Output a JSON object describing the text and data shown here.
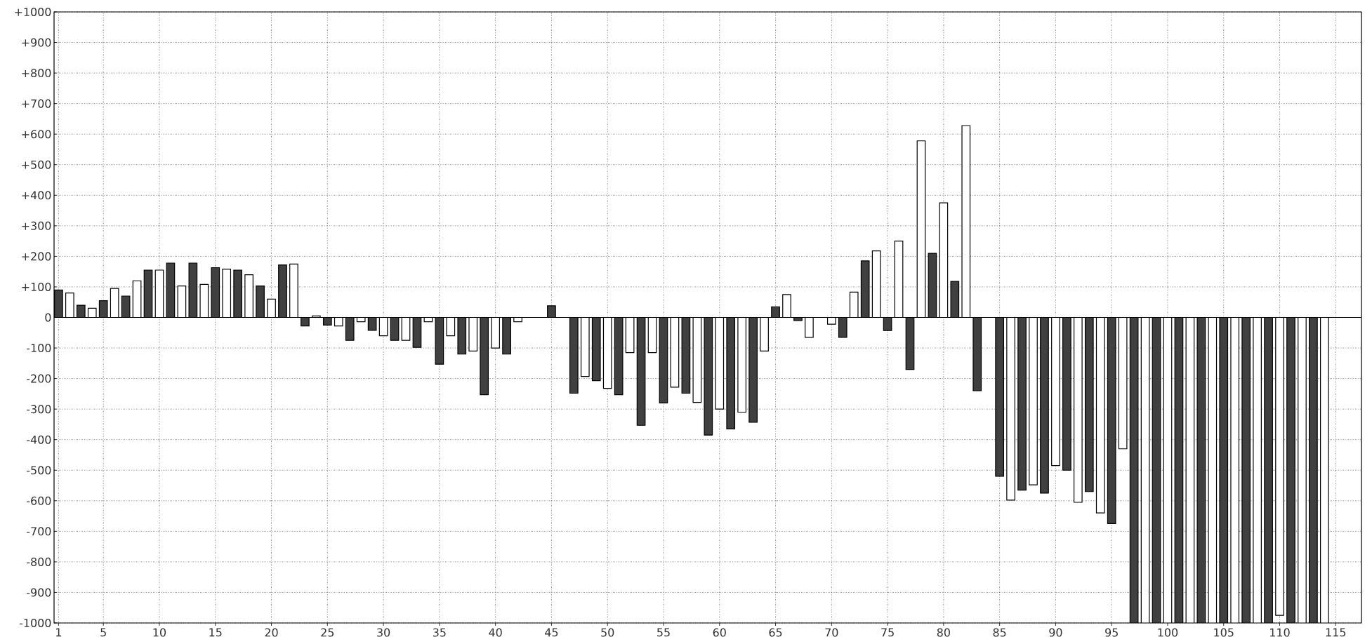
{
  "chart_data": {
    "type": "bar",
    "x": [
      1,
      2,
      3,
      4,
      5,
      6,
      7,
      8,
      9,
      10,
      11,
      12,
      13,
      14,
      15,
      16,
      17,
      18,
      19,
      20,
      21,
      22,
      23,
      24,
      25,
      26,
      27,
      28,
      29,
      30,
      31,
      32,
      33,
      34,
      35,
      36,
      37,
      38,
      39,
      40,
      41,
      42,
      43,
      44,
      45,
      46,
      47,
      48,
      49,
      50,
      51,
      52,
      53,
      54,
      55,
      56,
      57,
      58,
      59,
      60,
      61,
      62,
      63,
      64,
      65,
      66,
      67,
      68,
      69,
      70,
      71,
      72,
      73,
      74,
      75,
      76,
      77,
      78,
      79,
      80,
      81,
      82,
      83,
      84,
      85,
      86,
      87,
      88,
      89,
      90,
      91,
      92,
      93,
      94,
      95,
      96,
      97,
      98,
      99,
      100,
      101,
      102,
      103,
      104,
      105,
      106,
      107,
      108,
      109,
      110,
      111,
      112,
      113,
      114
    ],
    "values": [
      90,
      80,
      40,
      30,
      55,
      95,
      70,
      120,
      155,
      155,
      178,
      103,
      178,
      108,
      163,
      158,
      155,
      140,
      103,
      60,
      172,
      175,
      -28,
      5,
      -25,
      -28,
      -75,
      -14,
      -42,
      -60,
      -75,
      -75,
      -98,
      -14,
      -153,
      -60,
      -120,
      -110,
      -253,
      -100,
      -120,
      -14,
      null,
      null,
      38,
      null,
      -248,
      -193,
      -207,
      -232,
      -253,
      -115,
      -353,
      -115,
      -280,
      -228,
      -248,
      -278,
      -385,
      -300,
      -365,
      -310,
      -343,
      -110,
      35,
      75,
      -10,
      -65,
      null,
      -22,
      -65,
      83,
      185,
      218,
      -43,
      250,
      -170,
      578,
      210,
      375,
      118,
      628,
      -240,
      null,
      -520,
      -598,
      -565,
      -548,
      -575,
      -485,
      -500,
      -605,
      -570,
      -640,
      -675,
      -430,
      -1000,
      -1000,
      -1000,
      -1000,
      -1000,
      -1000,
      -1000,
      -1000,
      -1000,
      -1000,
      -1000,
      -1000,
      -1000,
      -975,
      -1000,
      -1000,
      -1000,
      -1000
    ],
    "colors": [
      "#404040",
      "#ffffff",
      "#404040",
      "#ffffff",
      "#404040",
      "#ffffff",
      "#404040",
      "#ffffff",
      "#404040",
      "#ffffff",
      "#404040",
      "#ffffff",
      "#404040",
      "#ffffff",
      "#404040",
      "#ffffff",
      "#404040",
      "#ffffff",
      "#404040",
      "#ffffff",
      "#404040",
      "#ffffff",
      "#404040",
      "#ffffff",
      "#404040",
      "#ffffff",
      "#404040",
      "#ffffff",
      "#404040",
      "#ffffff",
      "#404040",
      "#ffffff",
      "#404040",
      "#ffffff",
      "#404040",
      "#ffffff",
      "#404040",
      "#ffffff",
      "#404040",
      "#ffffff",
      "#404040",
      "#ffffff",
      "#404040",
      "#ffffff",
      "#404040",
      "#ffffff",
      "#404040",
      "#ffffff",
      "#404040",
      "#ffffff",
      "#404040",
      "#ffffff",
      "#404040",
      "#ffffff",
      "#404040",
      "#ffffff",
      "#404040",
      "#ffffff",
      "#404040",
      "#ffffff",
      "#404040",
      "#ffffff",
      "#404040",
      "#ffffff",
      "#404040",
      "#ffffff",
      "#404040",
      "#ffffff",
      "#404040",
      "#ffffff",
      "#404040",
      "#ffffff",
      "#404040",
      "#ffffff",
      "#404040",
      "#ffffff",
      "#404040",
      "#ffffff",
      "#404040",
      "#ffffff",
      "#404040",
      "#ffffff",
      "#404040",
      "#ffffff",
      "#404040",
      "#ffffff",
      "#404040",
      "#ffffff",
      "#404040",
      "#ffffff",
      "#404040",
      "#ffffff",
      "#404040",
      "#ffffff",
      "#404040",
      "#ffffff",
      "#404040",
      "#ffffff",
      "#404040",
      "#ffffff",
      "#404040",
      "#ffffff",
      "#404040",
      "#ffffff",
      "#404040",
      "#ffffff",
      "#404040",
      "#ffffff",
      "#404040",
      "#ffffff",
      "#404040",
      "#ffffff",
      "#404040",
      "#ffffff"
    ],
    "xlim": [
      0.6,
      117.3
    ],
    "ylim": [
      -1000,
      1000
    ],
    "xticks": [
      1,
      5,
      10,
      15,
      20,
      25,
      30,
      35,
      40,
      45,
      50,
      55,
      60,
      65,
      70,
      75,
      80,
      85,
      90,
      95,
      100,
      105,
      110,
      115
    ],
    "yticks": [
      {
        "value": 1000,
        "label": "+1000"
      },
      {
        "value": 900,
        "label": "+900"
      },
      {
        "value": 800,
        "label": "+800"
      },
      {
        "value": 700,
        "label": "+700"
      },
      {
        "value": 600,
        "label": "+600"
      },
      {
        "value": 500,
        "label": "+500"
      },
      {
        "value": 400,
        "label": "+400"
      },
      {
        "value": 300,
        "label": "+300"
      },
      {
        "value": 200,
        "label": "+200"
      },
      {
        "value": 100,
        "label": "+100"
      },
      0,
      -100,
      -200,
      -300,
      -400,
      -500,
      -600,
      -700,
      -800,
      -900,
      -1000
    ],
    "grid": true
  }
}
